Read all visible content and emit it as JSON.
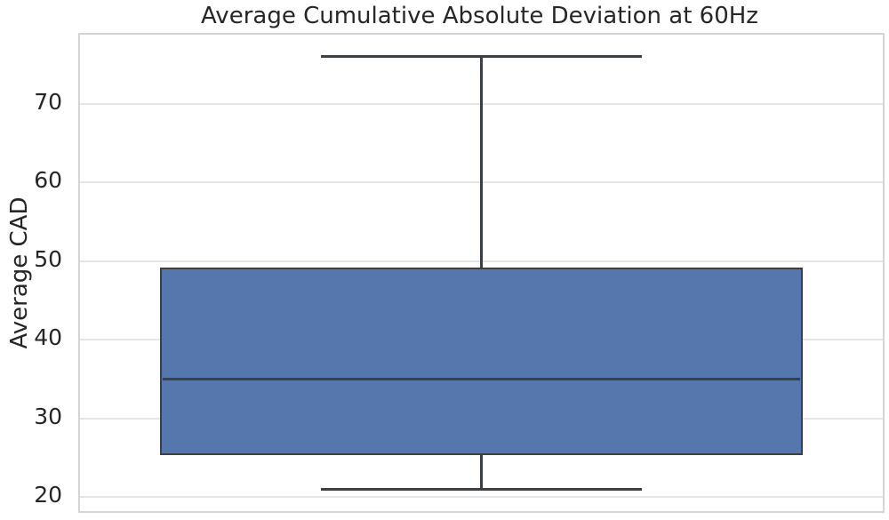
{
  "chart_data": {
    "type": "box",
    "title": "Average Cumulative Absolute Deviation at 60Hz",
    "xlabel": "",
    "ylabel": "Average CAD",
    "orientation": "vertical",
    "grid": true,
    "legend": false,
    "yticks": [
      20,
      30,
      40,
      50,
      60,
      70
    ],
    "ylim": [
      18.25,
      78.75
    ],
    "box": {
      "whisker_low": 21,
      "q1": 25.5,
      "median": 35,
      "q3": 49,
      "whisker_high": 76,
      "outliers": []
    },
    "box_width_fraction": 0.8,
    "cap_width_fraction": 0.4,
    "colors": {
      "box_fill": "#5577AE",
      "box_edge": "#3B4044",
      "grid": "#E5E5E5",
      "spine": "#D4D4D4",
      "text": "#262626",
      "background": "#FFFFFF"
    }
  }
}
